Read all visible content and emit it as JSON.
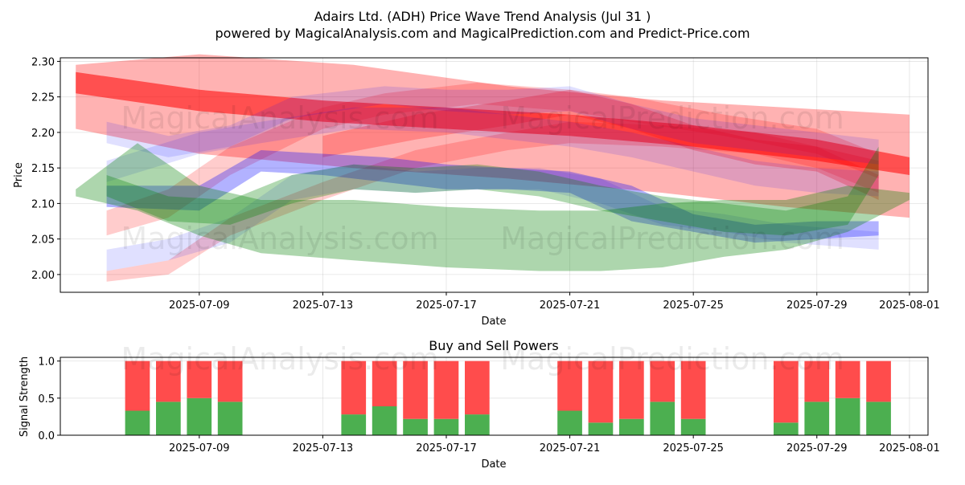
{
  "title": "Adairs Ltd. (ADH) Price Wave Trend Analysis (Jul 31 )",
  "subtitle": "powered by MagicalAnalysis.com and MagicalPrediction.com and Predict-Price.com",
  "watermarks": [
    "MagicalAnalysis.com",
    "MagicalPrediction.com"
  ],
  "colors": {
    "red": "#ff0000",
    "green": "#008000",
    "blue": "#0000ff",
    "buy": "#4caf50",
    "sell": "#ff4c4c"
  },
  "chart_data": [
    {
      "type": "area",
      "title": "",
      "xlabel": "Date",
      "ylabel": "Price",
      "xlim": [
        "2025-07-05",
        "2025-08-01"
      ],
      "ylim": [
        1.975,
        2.305
      ],
      "x_ticks": [
        "2025-07-09",
        "2025-07-13",
        "2025-07-17",
        "2025-07-21",
        "2025-07-25",
        "2025-07-29",
        "2025-08-01"
      ],
      "y_ticks": [
        "2.00",
        "2.05",
        "2.10",
        "2.15",
        "2.20",
        "2.25",
        "2.30"
      ],
      "grid": true,
      "bands": [
        {
          "color": "red",
          "opacity": 0.3,
          "dates": [
            "2025-07-05",
            "2025-07-09",
            "2025-07-14",
            "2025-07-19",
            "2025-07-24",
            "2025-07-28",
            "2025-08-01"
          ],
          "upper": [
            2.295,
            2.31,
            2.295,
            2.265,
            2.245,
            2.235,
            2.225
          ],
          "lower": [
            2.205,
            2.17,
            2.15,
            2.135,
            2.115,
            2.095,
            2.08
          ]
        },
        {
          "color": "red",
          "opacity": 0.55,
          "dates": [
            "2025-07-05",
            "2025-07-09",
            "2025-07-13",
            "2025-07-17",
            "2025-07-21",
            "2025-07-25",
            "2025-07-29",
            "2025-08-01"
          ],
          "upper": [
            2.285,
            2.26,
            2.245,
            2.235,
            2.225,
            2.21,
            2.19,
            2.165
          ],
          "lower": [
            2.255,
            2.23,
            2.215,
            2.205,
            2.195,
            2.18,
            2.16,
            2.14
          ]
        },
        {
          "color": "red",
          "opacity": 0.2,
          "dates": [
            "2025-07-06",
            "2025-07-08",
            "2025-07-10",
            "2025-07-13",
            "2025-07-15",
            "2025-07-18",
            "2025-07-21",
            "2025-07-23",
            "2025-07-26",
            "2025-07-29",
            "2025-07-31"
          ],
          "upper": [
            2.09,
            2.12,
            2.18,
            2.235,
            2.255,
            2.27,
            2.26,
            2.25,
            2.225,
            2.205,
            2.17
          ],
          "lower": [
            2.055,
            2.08,
            2.14,
            2.205,
            2.225,
            2.24,
            2.23,
            2.215,
            2.195,
            2.17,
            2.135
          ]
        },
        {
          "color": "red",
          "opacity": 0.2,
          "dates": [
            "2025-07-06",
            "2025-07-08",
            "2025-07-10",
            "2025-07-13",
            "2025-07-16",
            "2025-07-19",
            "2025-07-21",
            "2025-07-24",
            "2025-07-27",
            "2025-07-29",
            "2025-07-31"
          ],
          "upper": [
            2.005,
            2.02,
            2.08,
            2.13,
            2.175,
            2.2,
            2.215,
            2.21,
            2.2,
            2.18,
            2.14
          ],
          "lower": [
            1.99,
            2.0,
            2.055,
            2.105,
            2.15,
            2.175,
            2.185,
            2.18,
            2.17,
            2.15,
            2.115
          ]
        },
        {
          "color": "red",
          "opacity": 0.25,
          "dates": [
            "2025-07-13",
            "2025-07-16",
            "2025-07-19",
            "2025-07-21",
            "2025-07-23",
            "2025-07-25",
            "2025-07-27",
            "2025-07-29",
            "2025-07-31"
          ],
          "upper": [
            2.195,
            2.225,
            2.245,
            2.26,
            2.24,
            2.21,
            2.19,
            2.18,
            2.16
          ],
          "lower": [
            2.165,
            2.19,
            2.21,
            2.225,
            2.205,
            2.175,
            2.155,
            2.145,
            2.105
          ]
        },
        {
          "color": "blue",
          "opacity": 0.3,
          "dates": [
            "2025-07-06",
            "2025-07-09",
            "2025-07-11",
            "2025-07-13",
            "2025-07-15",
            "2025-07-17",
            "2025-07-19",
            "2025-07-21",
            "2025-07-23",
            "2025-07-25",
            "2025-07-27",
            "2025-07-29",
            "2025-07-31"
          ],
          "upper": [
            2.125,
            2.125,
            2.175,
            2.17,
            2.165,
            2.155,
            2.15,
            2.145,
            2.125,
            2.085,
            2.07,
            2.075,
            2.075
          ],
          "lower": [
            2.095,
            2.09,
            2.145,
            2.14,
            2.13,
            2.12,
            2.12,
            2.115,
            2.075,
            2.06,
            2.045,
            2.05,
            2.055
          ]
        },
        {
          "color": "blue",
          "opacity": 0.12,
          "dates": [
            "2025-07-06",
            "2025-07-08",
            "2025-07-10",
            "2025-07-12",
            "2025-07-15",
            "2025-07-17",
            "2025-07-19",
            "2025-07-21",
            "2025-07-23",
            "2025-07-25",
            "2025-07-28",
            "2025-07-31"
          ],
          "upper": [
            2.215,
            2.195,
            2.21,
            2.25,
            2.265,
            2.26,
            2.26,
            2.265,
            2.24,
            2.22,
            2.205,
            2.19
          ],
          "lower": [
            2.185,
            2.165,
            2.18,
            2.22,
            2.24,
            2.23,
            2.225,
            2.23,
            2.205,
            2.185,
            2.17,
            2.155
          ]
        },
        {
          "color": "blue",
          "opacity": 0.12,
          "dates": [
            "2025-07-06",
            "2025-07-08",
            "2025-07-10",
            "2025-07-12",
            "2025-07-14",
            "2025-07-16",
            "2025-07-18",
            "2025-07-20",
            "2025-07-22",
            "2025-07-24",
            "2025-07-26",
            "2025-07-28",
            "2025-07-31"
          ],
          "upper": [
            2.035,
            2.05,
            2.08,
            2.14,
            2.155,
            2.145,
            2.15,
            2.15,
            2.135,
            2.095,
            2.085,
            2.07,
            2.06
          ],
          "lower": [
            2.005,
            2.02,
            2.045,
            2.105,
            2.12,
            2.115,
            2.12,
            2.12,
            2.1,
            2.07,
            2.06,
            2.045,
            2.035
          ]
        },
        {
          "color": "blue",
          "opacity": 0.12,
          "dates": [
            "2025-07-06",
            "2025-07-09",
            "2025-07-11",
            "2025-07-14",
            "2025-07-17",
            "2025-07-19",
            "2025-07-21",
            "2025-07-23",
            "2025-07-25",
            "2025-07-27",
            "2025-07-29",
            "2025-07-31"
          ],
          "upper": [
            2.16,
            2.2,
            2.215,
            2.235,
            2.235,
            2.225,
            2.215,
            2.2,
            2.18,
            2.16,
            2.15,
            2.145
          ],
          "lower": [
            2.13,
            2.17,
            2.185,
            2.205,
            2.2,
            2.19,
            2.18,
            2.165,
            2.145,
            2.125,
            2.115,
            2.11
          ]
        },
        {
          "color": "green",
          "opacity": 0.32,
          "dates": [
            "2025-07-05",
            "2025-07-07",
            "2025-07-09",
            "2025-07-11",
            "2025-07-14",
            "2025-07-17",
            "2025-07-20",
            "2025-07-22",
            "2025-07-24",
            "2025-07-26",
            "2025-07-28",
            "2025-07-30",
            "2025-08-01"
          ],
          "upper": [
            2.12,
            2.185,
            2.125,
            2.105,
            2.105,
            2.095,
            2.09,
            2.09,
            2.1,
            2.105,
            2.105,
            2.125,
            2.115
          ],
          "lower": [
            2.11,
            2.09,
            2.055,
            2.03,
            2.02,
            2.01,
            2.005,
            2.005,
            2.01,
            2.025,
            2.035,
            2.06,
            2.105
          ]
        },
        {
          "color": "green",
          "opacity": 0.3,
          "dates": [
            "2025-07-06",
            "2025-07-08",
            "2025-07-10",
            "2025-07-12",
            "2025-07-14",
            "2025-07-16",
            "2025-07-18",
            "2025-07-20",
            "2025-07-22",
            "2025-07-24",
            "2025-07-26",
            "2025-07-28",
            "2025-07-30",
            "2025-07-31"
          ],
          "upper": [
            2.14,
            2.11,
            2.105,
            2.14,
            2.155,
            2.15,
            2.155,
            2.145,
            2.125,
            2.11,
            2.1,
            2.09,
            2.11,
            2.18
          ],
          "lower": [
            2.11,
            2.075,
            2.07,
            2.1,
            2.12,
            2.115,
            2.12,
            2.11,
            2.09,
            2.075,
            2.06,
            2.055,
            2.07,
            2.14
          ]
        }
      ]
    },
    {
      "type": "bar",
      "title": "Buy and Sell Powers",
      "xlabel": "Date",
      "ylabel": "Signal Strength",
      "xlim": [
        "2025-07-05",
        "2025-08-01"
      ],
      "ylim": [
        0,
        1.05
      ],
      "y_ticks": [
        "0.0",
        "0.5",
        "1.0"
      ],
      "x_ticks": [
        "2025-07-09",
        "2025-07-13",
        "2025-07-17",
        "2025-07-21",
        "2025-07-25",
        "2025-07-29",
        "2025-08-01"
      ],
      "categories": [
        "2025-07-07",
        "2025-07-08",
        "2025-07-09",
        "2025-07-10",
        "2025-07-14",
        "2025-07-15",
        "2025-07-16",
        "2025-07-17",
        "2025-07-18",
        "2025-07-21",
        "2025-07-22",
        "2025-07-23",
        "2025-07-24",
        "2025-07-25",
        "2025-07-28",
        "2025-07-29",
        "2025-07-30",
        "2025-07-31"
      ],
      "series": [
        {
          "name": "",
          "color": "buy",
          "values": [
            0.33,
            0.45,
            0.5,
            0.45,
            0.28,
            0.39,
            0.22,
            0.22,
            0.28,
            0.33,
            0.17,
            0.22,
            0.45,
            0.22,
            0.17,
            0.45,
            0.5,
            0.45
          ]
        },
        {
          "name": "",
          "color": "sell",
          "values": [
            0.67,
            0.55,
            0.5,
            0.55,
            0.72,
            0.61,
            0.78,
            0.78,
            0.72,
            0.67,
            0.83,
            0.78,
            0.55,
            0.78,
            0.83,
            0.55,
            0.5,
            0.55
          ]
        }
      ],
      "grid": true
    }
  ]
}
